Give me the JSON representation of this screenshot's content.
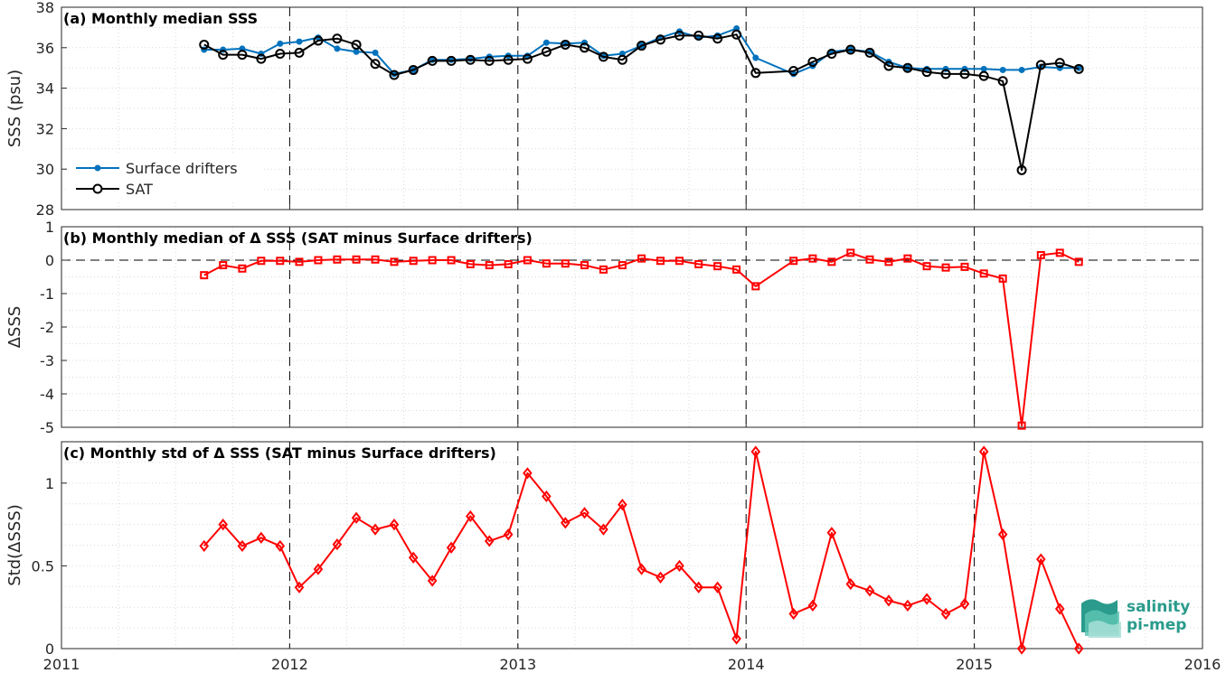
{
  "colors": {
    "drifters": "#0072BD",
    "sat": "#000000",
    "delta": "#FF0000",
    "grid": "#d9d9d9",
    "axis": "#262626"
  },
  "logo": {
    "line1": "salinity",
    "line2": "pi-mep"
  },
  "x_axis": {
    "ticks": [
      "2011",
      "2012",
      "2013",
      "2014",
      "2015",
      "2016"
    ]
  },
  "chart_data": [
    {
      "type": "line",
      "title": "(a) Monthly median SSS",
      "ylabel": "SSS (psu)",
      "xlim": [
        2011.0,
        2016.0
      ],
      "ylim": [
        28,
        38
      ],
      "yticks": [
        "28",
        "30",
        "32",
        "34",
        "36",
        "38"
      ],
      "grid": true,
      "legend": "bottom-left",
      "vlines": [
        2012.0,
        2013.0,
        2014.0,
        2015.0
      ],
      "x": [
        2011.625,
        2011.708,
        2011.792,
        2011.875,
        2011.958,
        2012.042,
        2012.125,
        2012.208,
        2012.292,
        2012.375,
        2012.458,
        2012.542,
        2012.625,
        2012.708,
        2012.792,
        2012.875,
        2012.958,
        2013.042,
        2013.125,
        2013.208,
        2013.292,
        2013.375,
        2013.458,
        2013.542,
        2013.625,
        2013.708,
        2013.792,
        2013.875,
        2013.958,
        2014.042,
        2014.208,
        2014.292,
        2014.375,
        2014.458,
        2014.542,
        2014.625,
        2014.708,
        2014.792,
        2014.875,
        2014.958,
        2015.042,
        2015.125,
        2015.208,
        2015.292,
        2015.375,
        2015.458
      ],
      "series": [
        {
          "name": "Surface drifters",
          "marker": "dot",
          "values": [
            35.9,
            35.9,
            35.95,
            35.7,
            36.2,
            36.3,
            36.5,
            35.95,
            35.8,
            35.75,
            34.7,
            34.9,
            35.4,
            35.4,
            35.45,
            35.55,
            35.6,
            35.6,
            36.25,
            36.2,
            36.25,
            35.6,
            35.7,
            36.1,
            36.5,
            36.8,
            36.5,
            36.6,
            36.95,
            35.5,
            34.7,
            35.1,
            35.8,
            35.9,
            35.8,
            35.3,
            35.0,
            34.95,
            34.95,
            34.95,
            34.95,
            34.9,
            34.9,
            35.05,
            35.0,
            35.0
          ]
        },
        {
          "name": "SAT",
          "marker": "circle",
          "values": [
            36.15,
            35.65,
            35.65,
            35.45,
            35.7,
            35.75,
            36.35,
            36.45,
            36.15,
            35.2,
            34.65,
            34.9,
            35.35,
            35.35,
            35.4,
            35.35,
            35.4,
            35.45,
            35.8,
            36.15,
            36.0,
            35.55,
            35.4,
            36.1,
            36.4,
            36.6,
            36.6,
            36.45,
            36.65,
            34.75,
            34.85,
            35.3,
            35.7,
            35.9,
            35.75,
            35.1,
            35.0,
            34.8,
            34.7,
            34.7,
            34.6,
            34.35,
            29.95,
            35.15,
            35.25,
            34.95
          ]
        }
      ]
    },
    {
      "type": "line",
      "title": "(b) Monthly median of Δ SSS (SAT minus Surface drifters)",
      "ylabel": "ΔSSS",
      "xlim": [
        2011.0,
        2016.0
      ],
      "ylim": [
        -5,
        1
      ],
      "yticks": [
        "-5",
        "-4",
        "-3",
        "-2",
        "-1",
        "0",
        "1"
      ],
      "grid": true,
      "hline": 0,
      "vlines": [
        2012.0,
        2013.0,
        2014.0,
        2015.0
      ],
      "x": [
        2011.625,
        2011.708,
        2011.792,
        2011.875,
        2011.958,
        2012.042,
        2012.125,
        2012.208,
        2012.292,
        2012.375,
        2012.458,
        2012.542,
        2012.625,
        2012.708,
        2012.792,
        2012.875,
        2012.958,
        2013.042,
        2013.125,
        2013.208,
        2013.292,
        2013.375,
        2013.458,
        2013.542,
        2013.625,
        2013.708,
        2013.792,
        2013.875,
        2013.958,
        2014.042,
        2014.208,
        2014.292,
        2014.375,
        2014.458,
        2014.542,
        2014.625,
        2014.708,
        2014.792,
        2014.875,
        2014.958,
        2015.042,
        2015.125,
        2015.208,
        2015.292,
        2015.375,
        2015.458
      ],
      "series": [
        {
          "marker": "square",
          "values": [
            -0.45,
            -0.15,
            -0.25,
            -0.02,
            -0.02,
            -0.05,
            0.0,
            0.02,
            0.02,
            0.02,
            -0.05,
            -0.02,
            0.0,
            0.0,
            -0.12,
            -0.15,
            -0.12,
            0.0,
            -0.1,
            -0.1,
            -0.15,
            -0.28,
            -0.15,
            0.05,
            -0.02,
            -0.02,
            -0.12,
            -0.18,
            -0.28,
            -0.78,
            -0.02,
            0.05,
            -0.05,
            0.22,
            0.02,
            -0.05,
            0.05,
            -0.18,
            -0.22,
            -0.2,
            -0.4,
            -0.55,
            -4.95,
            0.15,
            0.22,
            -0.05
          ]
        }
      ]
    },
    {
      "type": "line",
      "title": "(c) Monthly std of Δ SSS (SAT minus Surface drifters)",
      "ylabel": "Std(ΔSSS)",
      "xlim": [
        2011.0,
        2016.0
      ],
      "ylim": [
        0,
        1.25
      ],
      "yticks": [
        "0",
        "0.5",
        "1"
      ],
      "ytick_values": [
        0,
        0.5,
        1.0
      ],
      "grid": true,
      "vlines": [
        2012.0,
        2013.0,
        2014.0,
        2015.0
      ],
      "x": [
        2011.625,
        2011.708,
        2011.792,
        2011.875,
        2011.958,
        2012.042,
        2012.125,
        2012.208,
        2012.292,
        2012.375,
        2012.458,
        2012.542,
        2012.625,
        2012.708,
        2012.792,
        2012.875,
        2012.958,
        2013.042,
        2013.125,
        2013.208,
        2013.292,
        2013.375,
        2013.458,
        2013.542,
        2013.625,
        2013.708,
        2013.792,
        2013.875,
        2013.958,
        2014.042,
        2014.208,
        2014.292,
        2014.375,
        2014.458,
        2014.542,
        2014.625,
        2014.708,
        2014.792,
        2014.875,
        2014.958,
        2015.042,
        2015.125,
        2015.208,
        2015.292,
        2015.375,
        2015.458
      ],
      "series": [
        {
          "marker": "diamond",
          "values": [
            0.62,
            0.75,
            0.62,
            0.67,
            0.62,
            0.37,
            0.48,
            0.63,
            0.79,
            0.72,
            0.75,
            0.55,
            0.41,
            0.61,
            0.8,
            0.65,
            0.69,
            1.06,
            0.92,
            0.76,
            0.82,
            0.72,
            0.87,
            0.48,
            0.43,
            0.5,
            0.37,
            0.37,
            0.06,
            1.19,
            0.21,
            0.26,
            0.7,
            0.39,
            0.35,
            0.29,
            0.26,
            0.3,
            0.21,
            0.27,
            1.19,
            0.69,
            0.0,
            0.54,
            0.24,
            0.0
          ]
        }
      ]
    }
  ]
}
